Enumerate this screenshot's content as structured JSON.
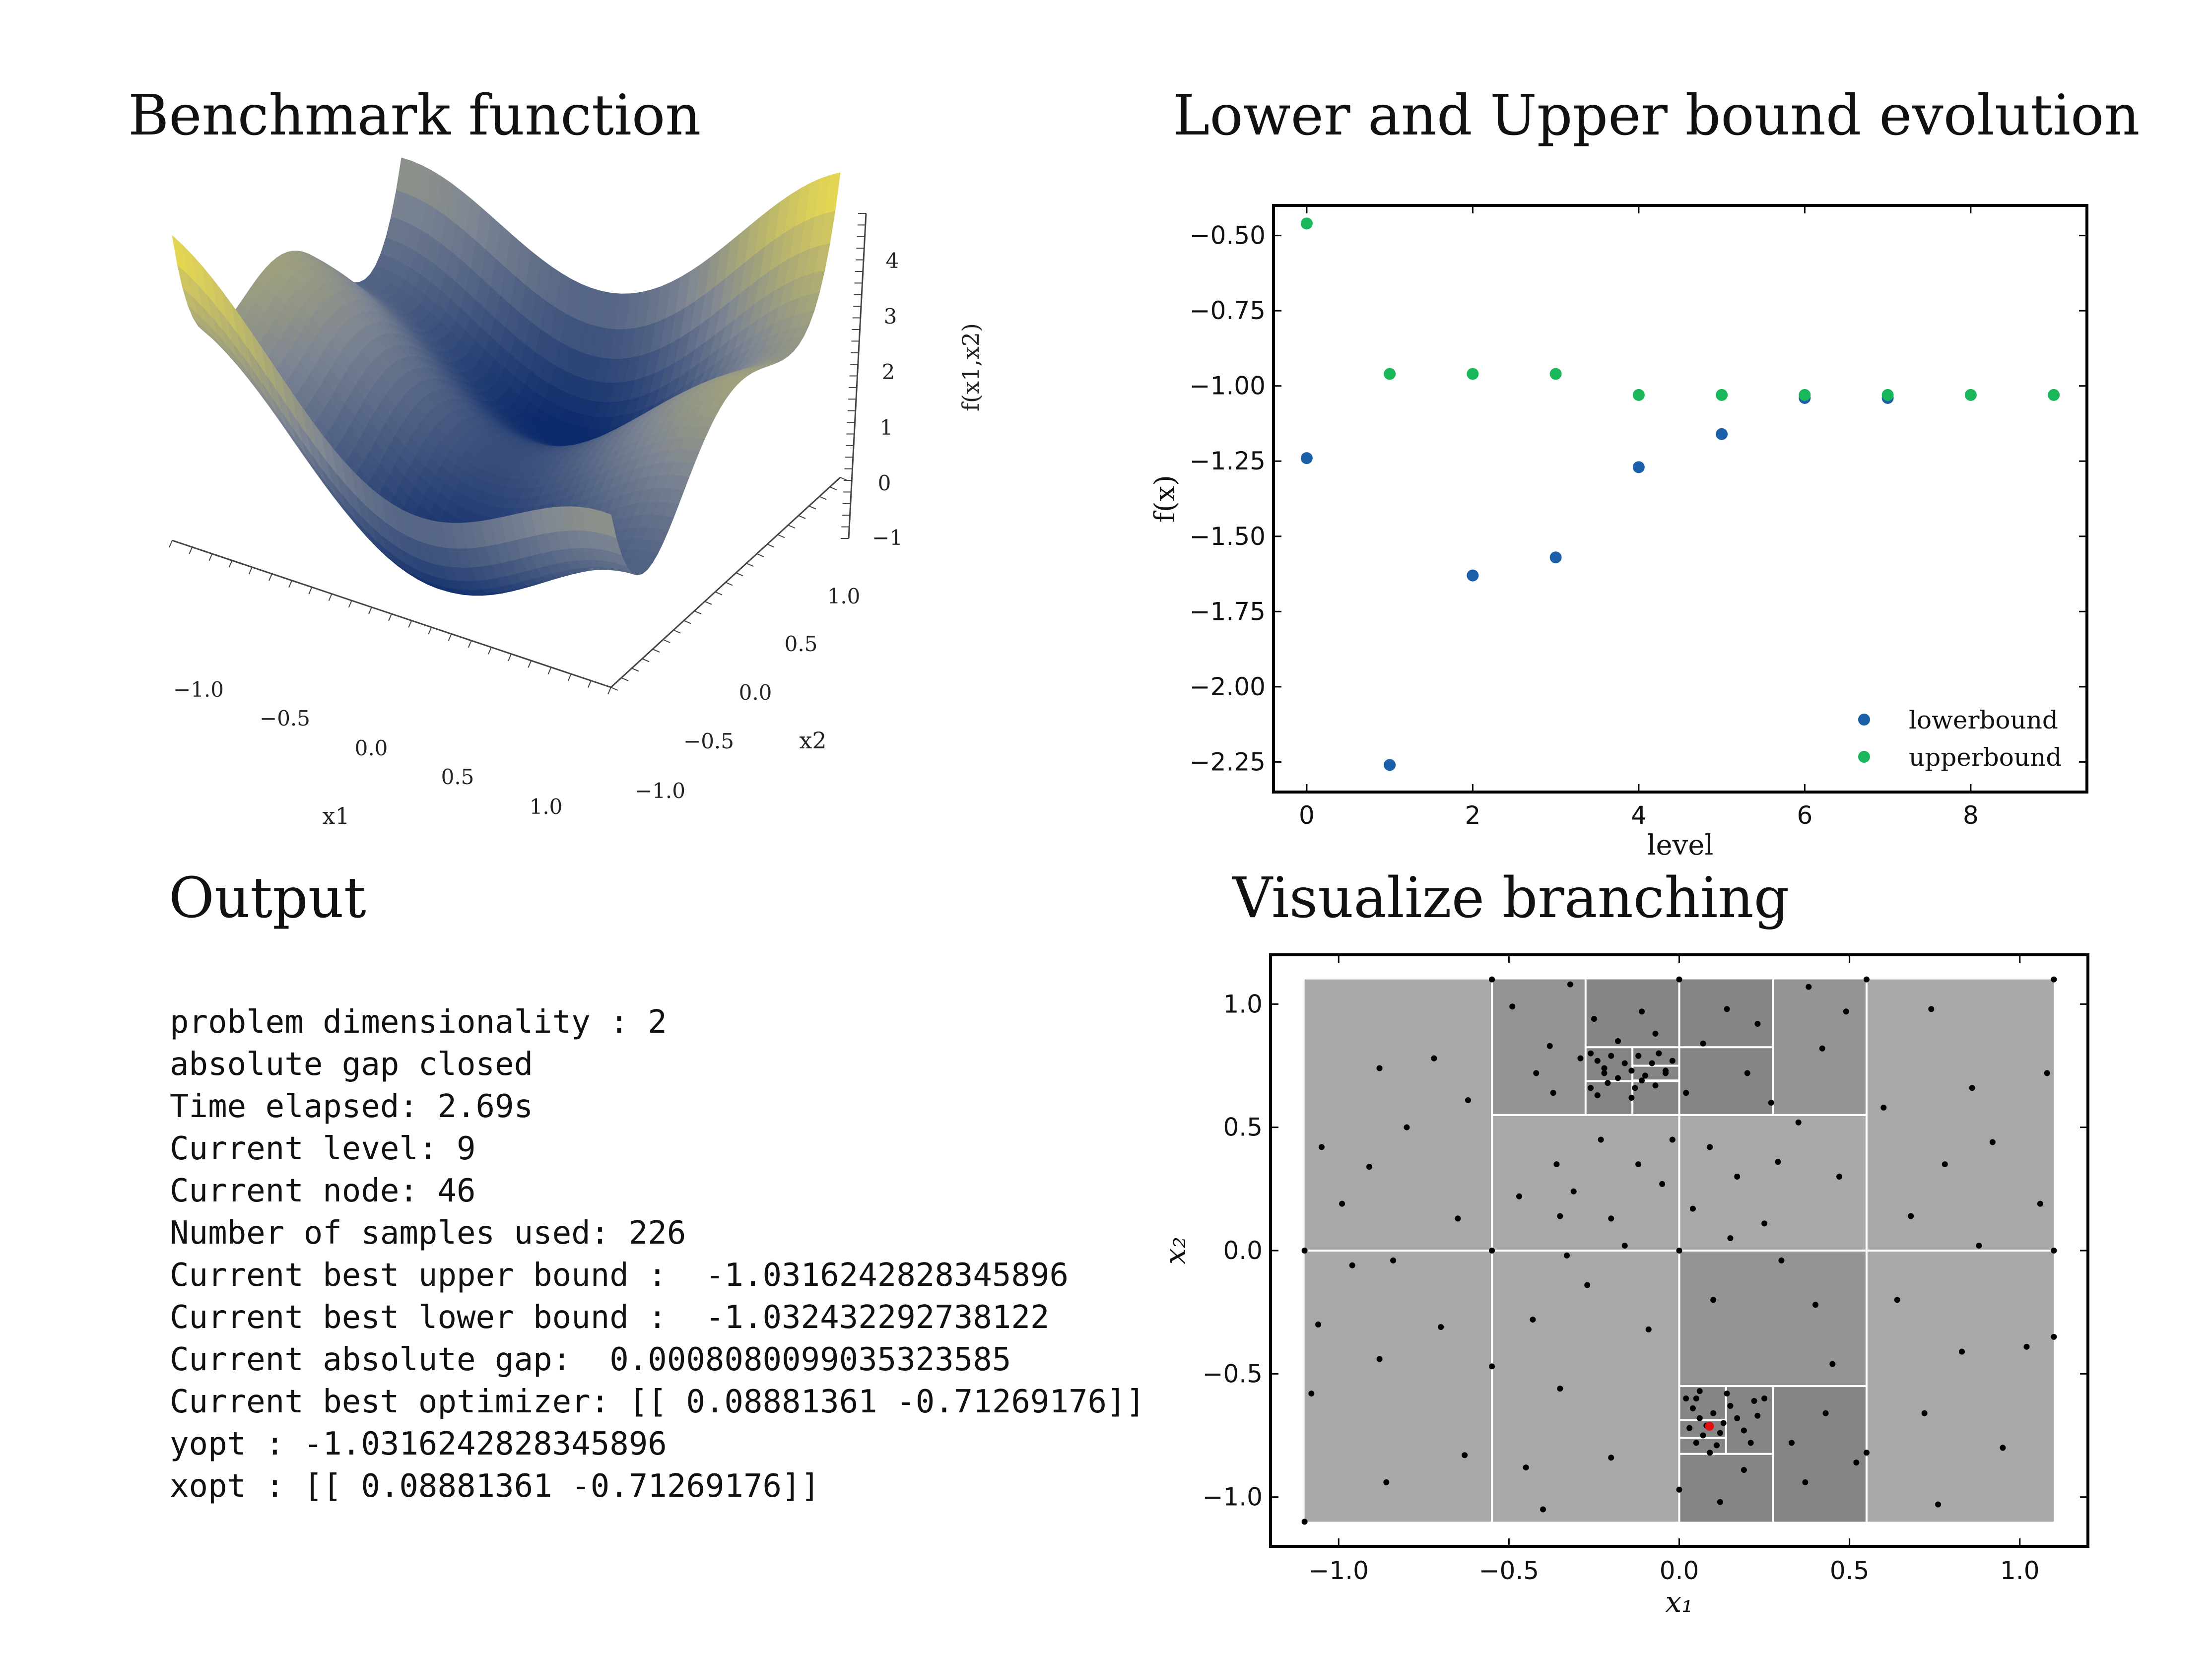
{
  "titles": {
    "benchmark": "Benchmark function",
    "bounds": "Lower and Upper bound evolution",
    "output": "Output",
    "branching": "Visualize branching"
  },
  "output_lines": [
    "problem dimensionality : 2",
    "absolute gap closed",
    "Time elapsed: 2.69s",
    "Current level: 9",
    "Current node: 46",
    "Number of samples used: 226",
    "Current best upper bound :  -1.0316242828345896",
    "Current best lower bound :  -1.032432292738122",
    "Current absolute gap:  0.0008080099035323585",
    "Current best optimizer: [[ 0.08881361 -0.71269176]]",
    "yopt : -1.0316242828345896",
    "xopt : [[ 0.08881361 -0.71269176]]"
  ],
  "colors": {
    "lowerbound": "#1a5fa8",
    "upperbound": "#1ab85a",
    "surface_low": "#0b2a6b",
    "surface_mid": "#7d8593",
    "surface_high": "#f2e24a",
    "box_light": "#a8a8a8",
    "box_mid": "#949494",
    "box_dark": "#858585",
    "optimizer": "#e01010"
  },
  "chart_data": [
    {
      "type": "surface3d",
      "xlabel": "x1",
      "ylabel": "x2",
      "zlabel": "f(x1,x2)",
      "x_ticks": [
        "−1.0",
        "−0.5",
        "0.0",
        "0.5",
        "1.0"
      ],
      "y_ticks": [
        "−1.0",
        "−0.5",
        "0.0",
        "0.5",
        "1.0"
      ],
      "z_ticks": [
        "−1",
        "0",
        "1",
        "2",
        "3",
        "4"
      ],
      "xlim": [
        -1.1,
        1.1
      ],
      "ylim": [
        -1.1,
        1.1
      ],
      "zlim": [
        -1,
        4.6
      ]
    },
    {
      "type": "scatter",
      "xlabel": "level",
      "ylabel": "f(x)",
      "xlim": [
        -0.4,
        9.4
      ],
      "ylim": [
        -2.35,
        -0.4
      ],
      "x_ticks": [
        0,
        2,
        4,
        6,
        8
      ],
      "y_ticks": [
        -0.5,
        -0.75,
        -1.0,
        -1.25,
        -1.5,
        -1.75,
        -2.0,
        -2.25
      ],
      "y_tick_labels": [
        "−0.50",
        "−0.75",
        "−1.00",
        "−1.25",
        "−1.50",
        "−1.75",
        "−2.00",
        "−2.25"
      ],
      "legend_position": "bottom-right",
      "series": [
        {
          "name": "lowerbound",
          "x": [
            0,
            1,
            2,
            3,
            4,
            5,
            6,
            7
          ],
          "y": [
            -1.24,
            -2.26,
            -1.63,
            -1.57,
            -1.27,
            -1.16,
            -1.04,
            -1.04
          ]
        },
        {
          "name": "upperbound",
          "x": [
            0,
            1,
            2,
            3,
            4,
            5,
            6,
            7,
            8,
            9
          ],
          "y": [
            -0.46,
            -0.96,
            -0.96,
            -0.96,
            -1.03,
            -1.03,
            -1.03,
            -1.03,
            -1.03,
            -1.03
          ]
        }
      ]
    },
    {
      "type": "scatter",
      "xlabel": "x₁",
      "ylabel": "x₂",
      "xlim": [
        -1.2,
        1.2
      ],
      "ylim": [
        -1.2,
        1.2
      ],
      "x_ticks": [
        -1.0,
        -0.5,
        0.0,
        0.5,
        1.0
      ],
      "x_tick_labels": [
        "−1.0",
        "−0.5",
        "0.0",
        "0.5",
        "1.0"
      ],
      "y_ticks": [
        1.0,
        0.5,
        0.0,
        -0.5,
        -1.0
      ],
      "y_tick_labels": [
        "1.0",
        "0.5",
        "0.0",
        "−0.5",
        "−1.0"
      ],
      "domain": [
        -1.1,
        1.1
      ],
      "optimizer": [
        0.0888,
        -0.7127
      ],
      "boxes_mid": [
        [
          -0.55,
          0.55,
          0.55,
          1.1
        ],
        [
          0.0,
          -0.55,
          0.55,
          0.0
        ]
      ],
      "boxes_dark": [
        [
          -0.275,
          0.55,
          0.275,
          1.1
        ],
        [
          0.0,
          -1.1,
          0.55,
          -0.55
        ]
      ],
      "grid_lines": [
        [
          -1.1,
          0.0,
          1.1,
          0.0
        ],
        [
          0.0,
          -1.1,
          0.0,
          1.1
        ],
        [
          -0.55,
          -1.1,
          -0.55,
          1.1
        ],
        [
          0.55,
          -1.1,
          0.55,
          1.1
        ],
        [
          -0.55,
          0.55,
          0.55,
          0.55
        ],
        [
          -0.275,
          0.55,
          -0.275,
          1.1
        ],
        [
          0.275,
          0.55,
          0.275,
          1.1
        ],
        [
          -0.275,
          0.825,
          0.275,
          0.825
        ],
        [
          -0.275,
          0.6875,
          0.0,
          0.6875
        ],
        [
          -0.1375,
          0.55,
          -0.1375,
          0.825
        ],
        [
          -0.1375,
          0.75,
          0.0,
          0.75
        ],
        [
          -0.1375,
          0.69,
          0.0,
          0.69
        ],
        [
          0.0,
          -0.55,
          0.55,
          -0.55
        ],
        [
          0.275,
          -1.1,
          0.275,
          -0.55
        ],
        [
          0.0,
          -0.825,
          0.275,
          -0.825
        ],
        [
          0.1375,
          -0.825,
          0.1375,
          -0.55
        ],
        [
          0.0,
          -0.6875,
          0.1375,
          -0.6875
        ],
        [
          0.0,
          -0.76,
          0.1375,
          -0.76
        ]
      ],
      "points": [
        [
          -1.1,
          -1.1
        ],
        [
          -1.1,
          0.0
        ],
        [
          -1.08,
          -0.58
        ],
        [
          -1.05,
          0.42
        ],
        [
          -1.06,
          -0.3
        ],
        [
          -0.99,
          0.19
        ],
        [
          -0.96,
          -0.06
        ],
        [
          -0.91,
          0.34
        ],
        [
          -0.88,
          0.74
        ],
        [
          -0.88,
          -0.44
        ],
        [
          -0.86,
          -0.94
        ],
        [
          -0.84,
          -0.04
        ],
        [
          -0.8,
          0.5
        ],
        [
          -0.72,
          0.78
        ],
        [
          -0.7,
          -0.31
        ],
        [
          -0.65,
          0.13
        ],
        [
          -0.63,
          -0.83
        ],
        [
          -0.62,
          0.61
        ],
        [
          -0.55,
          0.0
        ],
        [
          -0.55,
          -0.47
        ],
        [
          -0.55,
          1.1
        ],
        [
          -0.49,
          0.99
        ],
        [
          -0.47,
          0.22
        ],
        [
          -0.45,
          -0.88
        ],
        [
          -0.43,
          -0.28
        ],
        [
          -0.42,
          0.72
        ],
        [
          -0.4,
          -1.05
        ],
        [
          -0.38,
          0.83
        ],
        [
          -0.37,
          0.64
        ],
        [
          -0.36,
          0.35
        ],
        [
          -0.35,
          0.14
        ],
        [
          -0.35,
          -0.56
        ],
        [
          -0.33,
          -0.02
        ],
        [
          -0.32,
          1.08
        ],
        [
          -0.31,
          0.24
        ],
        [
          -0.29,
          0.78
        ],
        [
          -0.27,
          -0.14
        ],
        [
          -0.26,
          0.66
        ],
        [
          -0.25,
          0.94
        ],
        [
          -0.23,
          0.45
        ],
        [
          -0.22,
          0.72
        ],
        [
          -0.2,
          -0.84
        ],
        [
          -0.2,
          0.13
        ],
        [
          -0.18,
          0.85
        ],
        [
          -0.16,
          0.02
        ],
        [
          -0.14,
          0.62
        ],
        [
          -0.12,
          0.35
        ],
        [
          -0.11,
          0.97
        ],
        [
          -0.09,
          -0.32
        ],
        [
          -0.07,
          0.88
        ],
        [
          -0.05,
          0.27
        ],
        [
          -0.04,
          0.73
        ],
        [
          -0.02,
          0.45
        ],
        [
          0.0,
          1.1
        ],
        [
          0.0,
          0.0
        ],
        [
          0.0,
          -0.97
        ],
        [
          0.02,
          0.64
        ],
        [
          0.04,
          0.17
        ],
        [
          0.05,
          -0.6
        ],
        [
          0.07,
          0.84
        ],
        [
          0.09,
          0.42
        ],
        [
          0.1,
          -0.2
        ],
        [
          0.12,
          -1.02
        ],
        [
          0.14,
          0.98
        ],
        [
          0.15,
          0.05
        ],
        [
          0.17,
          0.3
        ],
        [
          0.19,
          -0.89
        ],
        [
          0.2,
          0.72
        ],
        [
          0.22,
          -0.61
        ],
        [
          0.23,
          0.92
        ],
        [
          0.25,
          0.11
        ],
        [
          0.27,
          0.6
        ],
        [
          0.29,
          0.36
        ],
        [
          0.3,
          -0.04
        ],
        [
          0.33,
          -0.78
        ],
        [
          0.35,
          0.52
        ],
        [
          0.37,
          -0.94
        ],
        [
          0.38,
          1.07
        ],
        [
          0.4,
          -0.22
        ],
        [
          0.42,
          0.82
        ],
        [
          0.43,
          -0.66
        ],
        [
          0.45,
          -0.46
        ],
        [
          0.47,
          0.3
        ],
        [
          0.49,
          0.97
        ],
        [
          0.52,
          -0.86
        ],
        [
          0.55,
          1.1
        ],
        [
          0.55,
          -0.82
        ],
        [
          0.6,
          0.58
        ],
        [
          0.64,
          -0.2
        ],
        [
          0.68,
          0.14
        ],
        [
          0.72,
          -0.66
        ],
        [
          0.74,
          0.98
        ],
        [
          0.76,
          -1.03
        ],
        [
          0.78,
          0.35
        ],
        [
          0.83,
          -0.41
        ],
        [
          0.86,
          0.66
        ],
        [
          0.88,
          0.02
        ],
        [
          0.92,
          0.44
        ],
        [
          0.95,
          -0.8
        ],
        [
          1.02,
          -0.39
        ],
        [
          1.06,
          0.19
        ],
        [
          1.08,
          0.72
        ],
        [
          1.1,
          -0.35
        ],
        [
          1.1,
          1.1
        ],
        [
          1.1,
          0.0
        ],
        [
          -0.26,
          0.8
        ],
        [
          -0.24,
          0.77
        ],
        [
          -0.22,
          0.74
        ],
        [
          -0.2,
          0.79
        ],
        [
          -0.18,
          0.7
        ],
        [
          -0.16,
          0.76
        ],
        [
          -0.14,
          0.73
        ],
        [
          -0.12,
          0.79
        ],
        [
          -0.1,
          0.71
        ],
        [
          -0.08,
          0.76
        ],
        [
          -0.06,
          0.8
        ],
        [
          -0.04,
          0.72
        ],
        [
          -0.02,
          0.77
        ],
        [
          -0.13,
          0.66
        ],
        [
          -0.11,
          0.69
        ],
        [
          -0.07,
          0.67
        ],
        [
          -0.24,
          0.63
        ],
        [
          -0.21,
          0.68
        ],
        [
          0.02,
          -0.6
        ],
        [
          0.04,
          -0.64
        ],
        [
          0.06,
          -0.68
        ],
        [
          0.08,
          -0.71
        ],
        [
          0.1,
          -0.66
        ],
        [
          0.12,
          -0.74
        ],
        [
          0.03,
          -0.72
        ],
        [
          0.05,
          -0.78
        ],
        [
          0.07,
          -0.75
        ],
        [
          0.11,
          -0.79
        ],
        [
          0.13,
          -0.7
        ],
        [
          0.15,
          -0.63
        ],
        [
          0.17,
          -0.68
        ],
        [
          0.19,
          -0.73
        ],
        [
          0.21,
          -0.78
        ],
        [
          0.23,
          -0.67
        ],
        [
          0.25,
          -0.6
        ],
        [
          0.09,
          -0.82
        ],
        [
          0.14,
          -0.58
        ],
        [
          0.06,
          -0.57
        ]
      ]
    }
  ]
}
